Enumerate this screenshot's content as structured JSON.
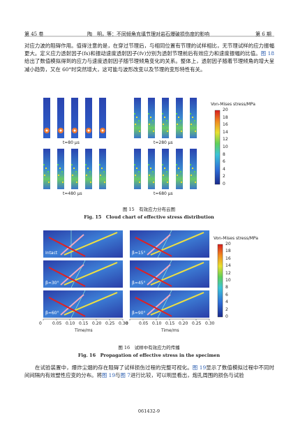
{
  "header": {
    "volume": "第 45 卷",
    "title": "陶　明，等：不同倾角充填节理对岩石爆破损伤度的影响",
    "issue": "第 6 期"
  },
  "paragraph_1": [
    "对应力波的阻碍作用。值得注意的是，在穿过节理后，与相同位置有节理的试样相比，无节理试样的应力振幅更大。定义应力透射因子(fs)和振动速度透射因子(fv)分别为透射节理前后有效应力和速度振幅的比值。",
    "图 18",
    "给出了数值模拟得到的应力与速度透射因子随节理倾角变化的关系。整体上，透射因子随着节理倾角的增大呈减小趋势，又在 60°时突然增大，这可能与波形改变以及节理的变形特性有关。"
  ],
  "figure_15": {
    "colorbar_title": "Von-Mises stress/MPa",
    "colorbar_ticks": [
      "20",
      "18",
      "16",
      "14",
      "12",
      "10",
      "8",
      "6",
      "4",
      "2",
      "0"
    ],
    "panel_labels": [
      "t=80 μs",
      "t=280 μs",
      "t=480 μs",
      "t=680 μs"
    ],
    "caption_cn": "图 15　有效应力分布云图",
    "caption_en": "Fig. 15　Cloud chart of effective stress distribution"
  },
  "figure_16": {
    "colorbar_title": "Von-Mises stress/MPa",
    "colorbar_ticks": [
      "20",
      "18",
      "16",
      "14",
      "12",
      "10",
      "8",
      "6",
      "4",
      "2",
      "0"
    ],
    "panel_labels": [
      "Intact",
      "β=15°",
      "β=30°",
      "β=45°",
      "β=60°",
      "β=90°"
    ],
    "x_ticks_left": [
      "0",
      "0.05",
      "0.10",
      "0.15",
      "0.20",
      "0.25",
      "0.30"
    ],
    "x_ticks_right": [
      "0",
      "0.05",
      "0.10",
      "0.15",
      "0.20",
      "0.25",
      "0.30"
    ],
    "x_label_left": "Time/ms",
    "x_label_right": "Time/ms",
    "caption_cn": "图 16　试样中有效应力的传播",
    "caption_en": "Fig. 16　Propagation of effective stress in the specimen"
  },
  "paragraph_2": [
    "在试验装置中，爆炸尘烟的存在阻碍了试样损伤过程的完整可视化。",
    "图 19",
    "显示了数值模拟过程中不同时间间隔内有效塑性应变的分布。将",
    "图 19",
    "与",
    "图 7",
    "进行比较，可以明显看出，炮孔周围的损伤与试验"
  ],
  "footer": {
    "page": "061432-9"
  }
}
